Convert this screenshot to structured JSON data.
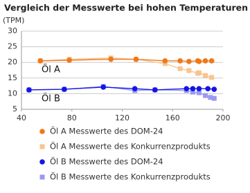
{
  "chart_data": {
    "type": "line",
    "title": "Vergleich der Messwerte bei hohen Temperaturen",
    "y_label": "(TPM)",
    "annotations": [
      "Öl A",
      "Öl B"
    ],
    "xlim": [
      40,
      200
    ],
    "xticks": [
      40,
      80,
      120,
      160,
      200
    ],
    "ylim": [
      5,
      30
    ],
    "yticks": [
      5,
      10,
      15,
      20,
      25,
      30
    ],
    "grid": true,
    "series": [
      {
        "name": "Öl A  Messwerte des DOM-24",
        "color": "#f07818",
        "marker": "circle",
        "x": [
          55,
          78,
          111,
          131,
          154,
          166,
          173,
          180,
          181,
          186,
          191
        ],
        "values": [
          20.5,
          20.7,
          21,
          21,
          20.5,
          20.5,
          20.3,
          20.5,
          20.3,
          20.5,
          20.5
        ]
      },
      {
        "name": "Öl A  Messwerte des Konkurrenzprodukts",
        "color": "#f8c48e",
        "marker": "square",
        "x": [
          55,
          78,
          111,
          131,
          154,
          166,
          173,
          180,
          181,
          186,
          191
        ],
        "values": [
          20.5,
          21,
          21.4,
          21,
          19.6,
          18,
          17.4,
          16.5,
          16.7,
          15.8,
          15.2
        ]
      },
      {
        "name": "Öl B  Messwerte des DOM-24",
        "color": "#1414e6",
        "marker": "circle",
        "x": [
          46,
          74,
          105,
          130,
          146,
          171,
          176,
          181,
          188,
          193
        ],
        "values": [
          11.2,
          11.4,
          12.1,
          11.6,
          11.2,
          11.6,
          11.6,
          11.6,
          11.6,
          11.4
        ]
      },
      {
        "name": "Öl B  Messwerte des Konkurrenzprodukts",
        "color": "#9a9af2",
        "marker": "square",
        "x": [
          46,
          74,
          105,
          130,
          146,
          171,
          176,
          181,
          186,
          190,
          193
        ],
        "values": [
          11.2,
          11.4,
          12.3,
          11,
          11.2,
          11,
          10.5,
          10.3,
          9.4,
          8.8,
          8.5
        ]
      }
    ]
  }
}
